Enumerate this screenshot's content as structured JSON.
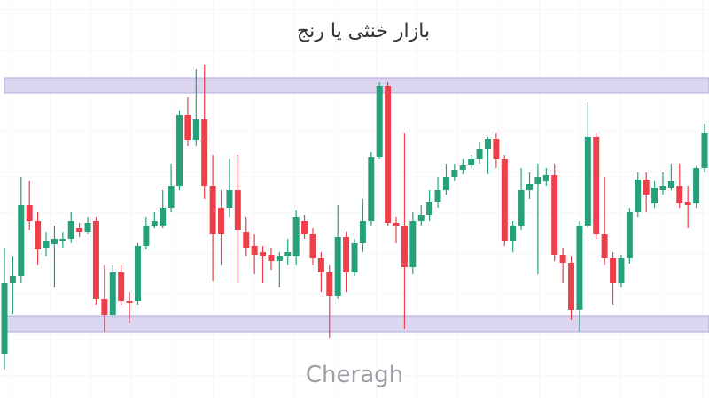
{
  "chart_data": {
    "type": "candlestick",
    "title": "بازار خنثی یا رنج",
    "watermark": "Cheragh",
    "up_color": "#26a17b",
    "down_color": "#ef3f4a",
    "zone_color": "#dcd6f0",
    "zone_stroke": "#b3a9dc",
    "ylim": [
      0,
      450
    ],
    "zones": [
      {
        "from": 345,
        "to": 362
      },
      {
        "from": 75,
        "to": 93
      }
    ],
    "open": [
      50,
      130,
      138,
      218,
      200,
      170,
      174,
      178,
      180,
      192,
      188,
      200,
      112,
      94,
      142,
      110,
      110,
      172,
      195,
      195,
      215,
      240,
      320,
      292,
      315,
      240,
      215,
      215,
      235,
      188,
      172,
      165,
      162,
      155,
      160,
      160,
      200,
      185,
      158,
      142,
      115,
      182,
      142,
      175,
      200,
      272,
      353,
      198,
      195,
      148,
      200,
      207,
      222,
      235,
      250,
      258,
      263,
      270,
      282,
      293,
      270,
      178,
      195,
      235,
      242,
      245,
      252,
      162,
      153,
      100,
      195,
      295,
      185,
      158,
      130,
      158,
      210,
      247,
      220,
      235,
      238,
      240,
      222,
      220,
      260
    ],
    "high": [
      170,
      160,
      250,
      245,
      210,
      188,
      195,
      188,
      210,
      198,
      205,
      205,
      150,
      150,
      150,
      120,
      175,
      205,
      210,
      235,
      265,
      325,
      340,
      372,
      377,
      275,
      235,
      270,
      275,
      205,
      185,
      172,
      170,
      165,
      180,
      212,
      207,
      192,
      165,
      150,
      218,
      188,
      180,
      225,
      278,
      357,
      357,
      205,
      300,
      210,
      218,
      235,
      250,
      265,
      265,
      270,
      275,
      290,
      295,
      300,
      275,
      200,
      260,
      255,
      265,
      260,
      265,
      170,
      160,
      200,
      335,
      300,
      250,
      165,
      162,
      215,
      255,
      255,
      245,
      255,
      265,
      265,
      240,
      262,
      310
    ],
    "low": [
      32,
      95,
      130,
      190,
      150,
      160,
      125,
      170,
      175,
      182,
      185,
      105,
      75,
      90,
      105,
      85,
      105,
      168,
      192,
      192,
      210,
      235,
      285,
      285,
      225,
      132,
      150,
      205,
      130,
      160,
      140,
      130,
      145,
      125,
      150,
      150,
      180,
      150,
      120,
      68,
      112,
      120,
      138,
      165,
      195,
      270,
      195,
      175,
      78,
      140,
      195,
      200,
      215,
      230,
      245,
      253,
      260,
      265,
      253,
      260,
      172,
      165,
      190,
      225,
      140,
      240,
      155,
      130,
      88,
      75,
      192,
      180,
      150,
      105,
      125,
      152,
      205,
      210,
      215,
      230,
      235,
      215,
      192,
      215,
      255
    ],
    "close": [
      130,
      138,
      218,
      200,
      168,
      178,
      180,
      180,
      200,
      188,
      198,
      112,
      94,
      142,
      110,
      107,
      172,
      195,
      200,
      215,
      240,
      320,
      292,
      315,
      240,
      185,
      185,
      235,
      190,
      170,
      162,
      160,
      155,
      160,
      165,
      205,
      185,
      158,
      142,
      115,
      182,
      142,
      175,
      200,
      272,
      353,
      198,
      195,
      148,
      200,
      207,
      222,
      235,
      250,
      258,
      263,
      270,
      282,
      293,
      270,
      178,
      195,
      235,
      242,
      250,
      252,
      162,
      153,
      100,
      195,
      295,
      185,
      158,
      130,
      158,
      210,
      247,
      230,
      238,
      240,
      245,
      220,
      218,
      260,
      300
    ]
  }
}
